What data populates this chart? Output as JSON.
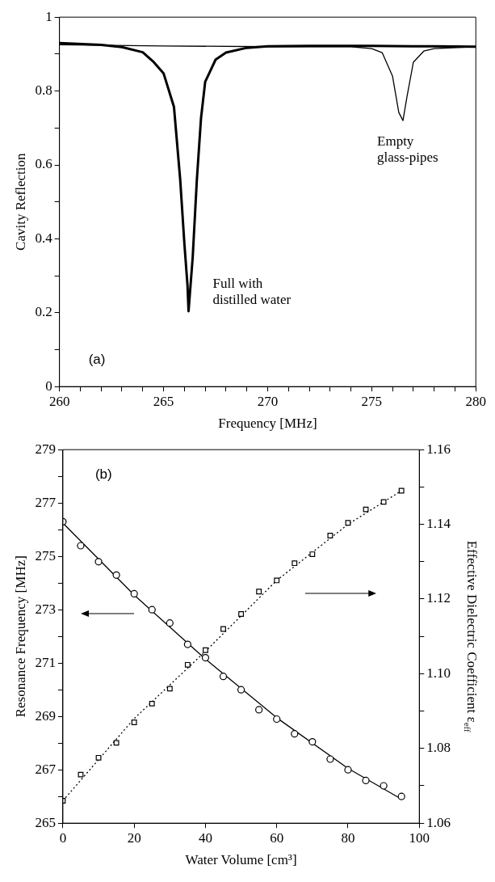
{
  "chart_data": [
    {
      "type": "line",
      "ylabel": "Cavity Reflection",
      "xlabel": "Frequency [MHz]",
      "annotations": [
        "(a)"
      ],
      "xlim": [
        260,
        280
      ],
      "ylim": [
        0,
        1
      ],
      "xticks": [
        260,
        {
          "value": 261,
          "label": null
        },
        {
          "value": 262,
          "label": null
        },
        {
          "value": 263,
          "label": null
        },
        {
          "value": 264,
          "label": null
        },
        265,
        {
          "value": 266,
          "label": null
        },
        {
          "value": 267,
          "label": null
        },
        {
          "value": 268,
          "label": null
        },
        {
          "value": 269,
          "label": null
        },
        270,
        {
          "value": 271,
          "label": null
        },
        {
          "value": 272,
          "label": null
        },
        {
          "value": 273,
          "label": null
        },
        {
          "value": 274,
          "label": null
        },
        275,
        {
          "value": 276,
          "label": null
        },
        {
          "value": 277,
          "label": null
        },
        {
          "value": 278,
          "label": null
        },
        {
          "value": 279,
          "label": null
        },
        280
      ],
      "yticks": [
        0,
        {
          "value": 0.1,
          "label": null
        },
        0.2,
        {
          "value": 0.3,
          "label": null
        },
        0.4,
        {
          "value": 0.5,
          "label": null
        },
        0.6,
        {
          "value": 0.7,
          "label": null
        },
        0.8,
        {
          "value": 0.9,
          "label": null
        },
        1
      ],
      "grid": false,
      "legend": false,
      "series": [
        {
          "name": "Full with distilled water",
          "color": "#000000",
          "x": [
            260,
            262,
            263,
            264,
            264.5,
            265,
            265.5,
            265.8,
            266,
            266.15,
            266.2,
            266.4,
            266.6,
            266.8,
            267,
            267.5,
            268,
            269,
            270,
            272,
            275,
            278,
            280
          ],
          "values": [
            0.93,
            0.925,
            0.919,
            0.905,
            0.88,
            0.848,
            0.757,
            0.56,
            0.387,
            0.274,
            0.204,
            0.35,
            0.56,
            0.727,
            0.825,
            0.885,
            0.904,
            0.917,
            0.921,
            0.922,
            0.922,
            0.921,
            0.92
          ]
        },
        {
          "name": "Empty glass-pipes",
          "color": "#000000",
          "x": [
            260,
            265,
            270,
            274,
            275,
            275.5,
            276,
            276.3,
            276.5,
            276.7,
            277,
            277.5,
            278,
            280
          ],
          "values": [
            0.925,
            0.922,
            0.92,
            0.92,
            0.915,
            0.904,
            0.84,
            0.742,
            0.72,
            0.787,
            0.878,
            0.908,
            0.915,
            0.92
          ]
        }
      ]
    },
    {
      "type": "scatter",
      "xlabel": "Water Volume [cm³]",
      "ylabel": "Resonance Frequency [MHz]",
      "y2label": "Effective Dielectric Coefficient ε$_{eff}$",
      "annotations": [
        "(b)"
      ],
      "xlim": [
        0,
        100
      ],
      "ylim": [
        265,
        279
      ],
      "xticks": [
        0,
        20,
        40,
        60,
        80,
        100
      ],
      "yticks": [
        265,
        {
          "value": 266,
          "label": null
        },
        267,
        {
          "value": 268,
          "label": null
        },
        269,
        {
          "value": 270,
          "label": null
        },
        271,
        {
          "value": 272,
          "label": null
        },
        273,
        {
          "value": 274,
          "label": null
        },
        275,
        {
          "value": 276,
          "label": null
        },
        277,
        {
          "value": 278,
          "label": null
        },
        279
      ],
      "y2lim": [
        1.06,
        1.16
      ],
      "y2ticks": [
        1.06,
        {
          "value": 1.07,
          "label": null
        },
        1.08,
        {
          "value": 1.09,
          "label": null
        },
        {
          "value": 1.1,
          "label": "1.10"
        },
        {
          "value": 1.11,
          "label": null
        },
        1.12,
        {
          "value": 1.13,
          "label": null
        },
        1.14,
        {
          "value": 1.15,
          "label": null
        },
        1.16
      ],
      "grid": false,
      "legend": false,
      "series": [
        {
          "type": "scatter",
          "marker": "circle",
          "color": "#000000",
          "x": [
            0,
            5,
            10,
            15,
            20,
            25,
            30,
            35,
            40,
            45,
            50,
            55,
            60,
            65,
            70,
            75,
            80,
            85,
            90,
            95
          ],
          "values": [
            276.3,
            275.4,
            274.8,
            274.3,
            273.6,
            273,
            272.5,
            271.7,
            271.2,
            270.5,
            270,
            269.25,
            268.9,
            268.35,
            268.05,
            267.4,
            267,
            266.6,
            266.4,
            266
          ]
        },
        {
          "type": "line",
          "line_style": "solid",
          "color": "#000000",
          "x": [
            0,
            20,
            40,
            60,
            80,
            95
          ],
          "values": [
            276.25,
            273.55,
            271.15,
            268.95,
            267.05,
            265.9
          ]
        },
        {
          "type": "scatter",
          "marker": "square",
          "axis": "y2",
          "color": "#000000",
          "x": [
            0,
            5,
            10,
            15,
            20,
            25,
            30,
            35,
            40,
            45,
            50,
            55,
            60,
            65,
            70,
            75,
            80,
            85,
            90,
            95
          ],
          "values": [
            1.066,
            1.073,
            1.0775,
            1.0815,
            1.087,
            1.092,
            1.096,
            1.1024,
            1.1063,
            1.112,
            1.116,
            1.122,
            1.125,
            1.1296,
            1.132,
            1.137,
            1.1404,
            1.144,
            1.146,
            1.149
          ]
        },
        {
          "type": "line",
          "line_style": "dotted",
          "axis": "y2",
          "color": "#000000",
          "x": [
            0,
            20,
            40,
            60,
            80,
            95
          ],
          "values": [
            1.066,
            1.088,
            1.106,
            1.125,
            1.14,
            1.149
          ]
        }
      ]
    }
  ]
}
